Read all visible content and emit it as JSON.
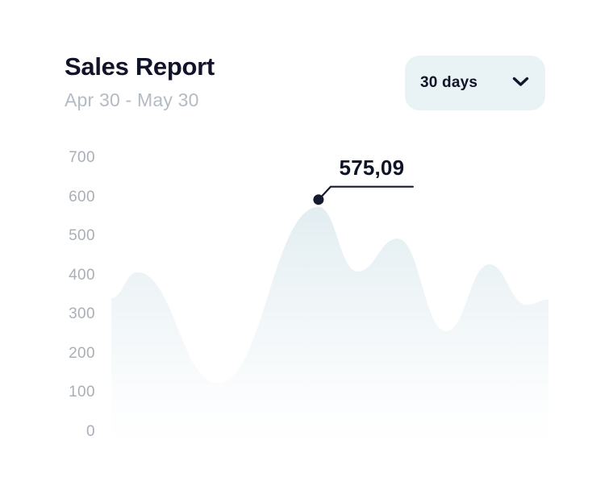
{
  "header": {
    "title": "Sales Report",
    "date_range": "Apr 30 - May 30",
    "period_selector": {
      "label": "30 days",
      "icon": "chevron-down"
    }
  },
  "chart_data": {
    "type": "area",
    "title": "Sales Report",
    "xlabel": "",
    "ylabel": "",
    "x_range": [
      "Apr 30",
      "May 30"
    ],
    "ylim": [
      0,
      700
    ],
    "y_ticks": [
      700,
      600,
      500,
      400,
      300,
      200,
      100,
      0
    ],
    "grid": false,
    "legend": false,
    "series": [
      {
        "name": "Sales",
        "anchors": [
          {
            "t": 0.0,
            "value": 342
          },
          {
            "t": 0.059,
            "value": 408
          },
          {
            "t": 0.244,
            "value": 125
          },
          {
            "t": 0.474,
            "value": 575.09,
            "highlight": true
          },
          {
            "t": 0.563,
            "value": 410
          },
          {
            "t": 0.655,
            "value": 494
          },
          {
            "t": 0.766,
            "value": 257
          },
          {
            "t": 0.865,
            "value": 428
          },
          {
            "t": 0.95,
            "value": 325
          },
          {
            "t": 1.0,
            "value": 338
          }
        ]
      }
    ],
    "highlight_label": "575,09",
    "colors": {
      "area_top": "#e2edf1",
      "area_mid": "#eaf2f5",
      "area_bottom": "#f5f9fb",
      "marker": "#161a2e",
      "leader_line": "#161a2e"
    }
  }
}
